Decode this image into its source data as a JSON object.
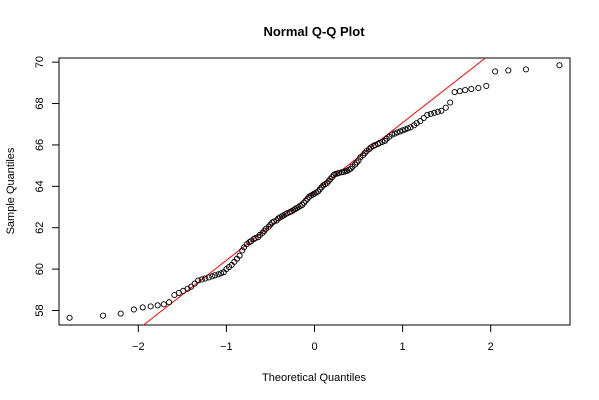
{
  "chart_data": {
    "type": "scatter",
    "title": "Normal Q-Q Plot",
    "xlabel": "Theoretical Quantiles",
    "ylabel": "Sample Quantiles",
    "xlim": [
      -2.9,
      2.9
    ],
    "ylim": [
      57.3,
      70.2
    ],
    "xticks": [
      -2,
      -1,
      0,
      1,
      2
    ],
    "yticks": [
      58,
      60,
      62,
      64,
      66,
      68,
      70
    ],
    "grid": false,
    "point_color": "#000000",
    "line_color": "#ff0000",
    "reference_line": {
      "from": [
        -2.0,
        57.1
      ],
      "to": [
        2.0,
        70.4
      ]
    },
    "points": [
      [
        -2.78,
        57.65
      ],
      [
        -2.4,
        57.75
      ],
      [
        -2.2,
        57.85
      ],
      [
        -2.05,
        58.05
      ],
      [
        -1.95,
        58.15
      ],
      [
        -1.86,
        58.2
      ],
      [
        -1.78,
        58.25
      ],
      [
        -1.71,
        58.3
      ],
      [
        -1.65,
        58.4
      ],
      [
        -1.59,
        58.75
      ],
      [
        -1.54,
        58.85
      ],
      [
        -1.49,
        58.95
      ],
      [
        -1.44,
        59.05
      ],
      [
        -1.4,
        59.15
      ],
      [
        -1.36,
        59.3
      ],
      [
        -1.32,
        59.45
      ],
      [
        -1.28,
        59.5
      ],
      [
        -1.24,
        59.55
      ],
      [
        -1.2,
        59.6
      ],
      [
        -1.16,
        59.65
      ],
      [
        -1.13,
        59.7
      ],
      [
        -1.09,
        59.75
      ],
      [
        -1.06,
        59.8
      ],
      [
        -1.03,
        59.85
      ],
      [
        -1.0,
        60.0
      ],
      [
        -0.97,
        60.1
      ],
      [
        -0.94,
        60.2
      ],
      [
        -0.91,
        60.35
      ],
      [
        -0.88,
        60.5
      ],
      [
        -0.85,
        60.65
      ],
      [
        -0.82,
        60.9
      ],
      [
        -0.8,
        61.05
      ],
      [
        -0.77,
        61.2
      ],
      [
        -0.74,
        61.3
      ],
      [
        -0.72,
        61.35
      ],
      [
        -0.69,
        61.45
      ],
      [
        -0.67,
        61.5
      ],
      [
        -0.64,
        61.55
      ],
      [
        -0.62,
        61.65
      ],
      [
        -0.59,
        61.75
      ],
      [
        -0.57,
        61.85
      ],
      [
        -0.55,
        61.95
      ],
      [
        -0.52,
        62.05
      ],
      [
        -0.5,
        62.15
      ],
      [
        -0.48,
        62.25
      ],
      [
        -0.46,
        62.3
      ],
      [
        -0.43,
        62.35
      ],
      [
        -0.41,
        62.45
      ],
      [
        -0.39,
        62.5
      ],
      [
        -0.37,
        62.55
      ],
      [
        -0.35,
        62.6
      ],
      [
        -0.33,
        62.65
      ],
      [
        -0.31,
        62.7
      ],
      [
        -0.28,
        62.75
      ],
      [
        -0.26,
        62.8
      ],
      [
        -0.24,
        62.85
      ],
      [
        -0.22,
        62.9
      ],
      [
        -0.2,
        62.95
      ],
      [
        -0.18,
        63.0
      ],
      [
        -0.16,
        63.05
      ],
      [
        -0.14,
        63.1
      ],
      [
        -0.12,
        63.2
      ],
      [
        -0.1,
        63.3
      ],
      [
        -0.08,
        63.4
      ],
      [
        -0.06,
        63.5
      ],
      [
        -0.04,
        63.55
      ],
      [
        -0.02,
        63.6
      ],
      [
        0.0,
        63.65
      ],
      [
        0.02,
        63.7
      ],
      [
        0.04,
        63.75
      ],
      [
        0.06,
        63.85
      ],
      [
        0.08,
        63.95
      ],
      [
        0.1,
        64.05
      ],
      [
        0.12,
        64.1
      ],
      [
        0.14,
        64.15
      ],
      [
        0.16,
        64.25
      ],
      [
        0.18,
        64.35
      ],
      [
        0.2,
        64.45
      ],
      [
        0.22,
        64.55
      ],
      [
        0.24,
        64.6
      ],
      [
        0.26,
        64.62
      ],
      [
        0.28,
        64.65
      ],
      [
        0.31,
        64.68
      ],
      [
        0.33,
        64.7
      ],
      [
        0.35,
        64.72
      ],
      [
        0.37,
        64.75
      ],
      [
        0.39,
        64.8
      ],
      [
        0.41,
        64.85
      ],
      [
        0.43,
        64.95
      ],
      [
        0.46,
        65.05
      ],
      [
        0.48,
        65.15
      ],
      [
        0.5,
        65.25
      ],
      [
        0.52,
        65.4
      ],
      [
        0.55,
        65.5
      ],
      [
        0.57,
        65.6
      ],
      [
        0.59,
        65.7
      ],
      [
        0.62,
        65.8
      ],
      [
        0.64,
        65.88
      ],
      [
        0.67,
        65.95
      ],
      [
        0.69,
        66.0
      ],
      [
        0.72,
        66.05
      ],
      [
        0.74,
        66.1
      ],
      [
        0.77,
        66.15
      ],
      [
        0.8,
        66.2
      ],
      [
        0.82,
        66.3
      ],
      [
        0.85,
        66.4
      ],
      [
        0.88,
        66.5
      ],
      [
        0.91,
        66.55
      ],
      [
        0.94,
        66.6
      ],
      [
        0.97,
        66.65
      ],
      [
        1.0,
        66.7
      ],
      [
        1.03,
        66.75
      ],
      [
        1.06,
        66.8
      ],
      [
        1.09,
        66.85
      ],
      [
        1.13,
        66.95
      ],
      [
        1.16,
        67.05
      ],
      [
        1.2,
        67.15
      ],
      [
        1.24,
        67.3
      ],
      [
        1.28,
        67.45
      ],
      [
        1.32,
        67.5
      ],
      [
        1.36,
        67.55
      ],
      [
        1.4,
        67.6
      ],
      [
        1.44,
        67.65
      ],
      [
        1.49,
        67.8
      ],
      [
        1.54,
        68.05
      ],
      [
        1.59,
        68.55
      ],
      [
        1.65,
        68.6
      ],
      [
        1.71,
        68.65
      ],
      [
        1.78,
        68.7
      ],
      [
        1.86,
        68.75
      ],
      [
        1.95,
        68.85
      ],
      [
        2.05,
        69.55
      ],
      [
        2.2,
        69.6
      ],
      [
        2.4,
        69.65
      ],
      [
        2.78,
        69.85
      ]
    ]
  }
}
